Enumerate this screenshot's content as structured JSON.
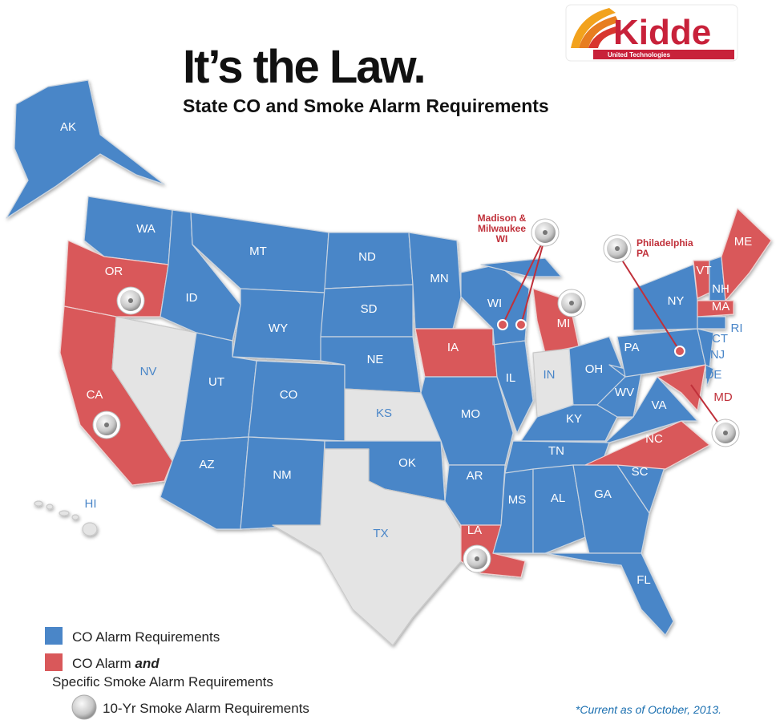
{
  "header": {
    "title": "It’s the Law.",
    "subtitle": "State CO and Smoke Alarm Requirements",
    "logo": "Kidde",
    "logo_sub": "United Technologies"
  },
  "states": [
    "AK",
    "WA",
    "OR",
    "CA",
    "NV",
    "ID",
    "MT",
    "WY",
    "UT",
    "CO",
    "AZ",
    "NM",
    "ND",
    "SD",
    "NE",
    "KS",
    "OK",
    "TX",
    "MN",
    "IA",
    "MO",
    "AR",
    "LA",
    "WI",
    "IL",
    "MI",
    "IN",
    "OH",
    "KY",
    "TN",
    "MS",
    "AL",
    "GA",
    "FL",
    "SC",
    "NC",
    "VA",
    "WV",
    "PA",
    "NY",
    "VT",
    "NH",
    "ME",
    "MA",
    "RI",
    "CT",
    "NJ",
    "DE",
    "MD",
    "HI"
  ],
  "callouts": {
    "madison": "Madison &\nMilwaukee\nWI",
    "philadelphia": "Philadelphia\nPA"
  },
  "legend": {
    "co": "CO Alarm Requirements",
    "co_smoke_a": "CO Alarm",
    "co_smoke_b": "and",
    "co_smoke_c": "Specific Smoke Alarm Requirements",
    "ten_yr": "10-Yr Smoke Alarm Requirements"
  },
  "footnote": "*Current as of October, 2013."
}
